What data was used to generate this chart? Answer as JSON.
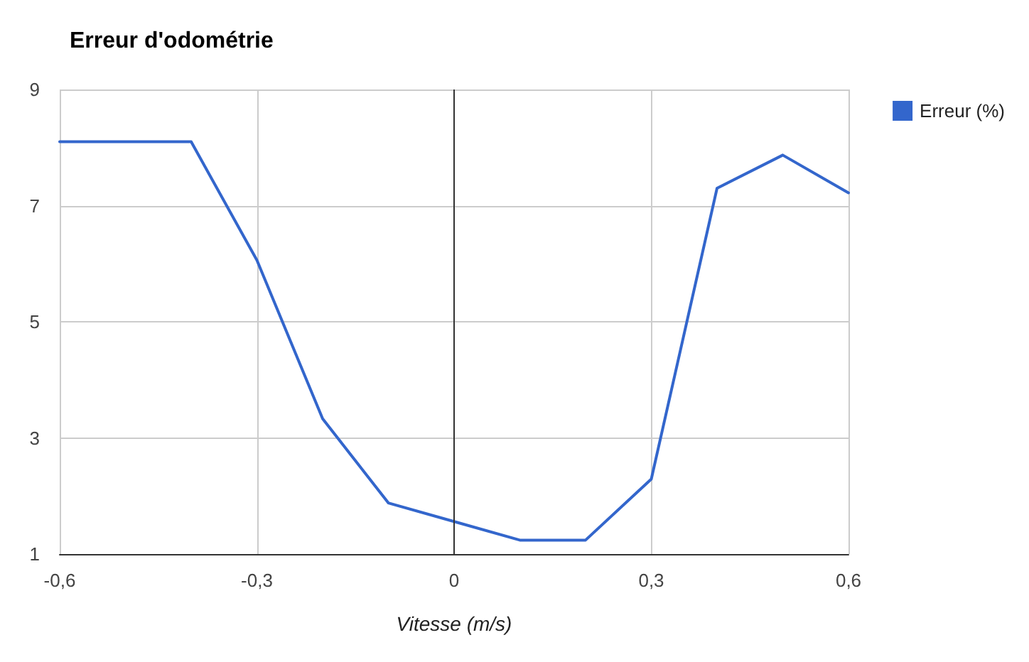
{
  "chart_data": {
    "type": "line",
    "title": "Erreur d'odométrie",
    "xlabel": "Vitesse (m/s)",
    "x": [
      -0.6,
      -0.5,
      -0.4,
      -0.3,
      -0.2,
      -0.1,
      0,
      0.1,
      0.2,
      0.3,
      0.4,
      0.5,
      0.6
    ],
    "series": [
      {
        "name": "Erreur (%)",
        "color": "#3366cc",
        "values": [
          8.1,
          8.1,
          8.1,
          6.06,
          3.33,
          1.88,
          1.56,
          1.24,
          1.24,
          2.29,
          7.3,
          7.87,
          7.22
        ]
      }
    ],
    "xlim": [
      -0.6,
      0.6
    ],
    "xticks": [
      {
        "value": -0.6,
        "label": "-0,6"
      },
      {
        "value": -0.3,
        "label": "-0,3"
      },
      0,
      {
        "value": 0.3,
        "label": "0,3"
      },
      {
        "value": 0.6,
        "label": "0,6"
      }
    ],
    "ylim": [
      1,
      9
    ],
    "yticks": [
      1,
      3,
      5,
      7,
      9
    ],
    "ref_lines": [
      {
        "axis": "x",
        "value": 0,
        "color": "#333333"
      }
    ],
    "grid": true,
    "legend": "top right",
    "marker": "none",
    "line_style": "solid"
  }
}
